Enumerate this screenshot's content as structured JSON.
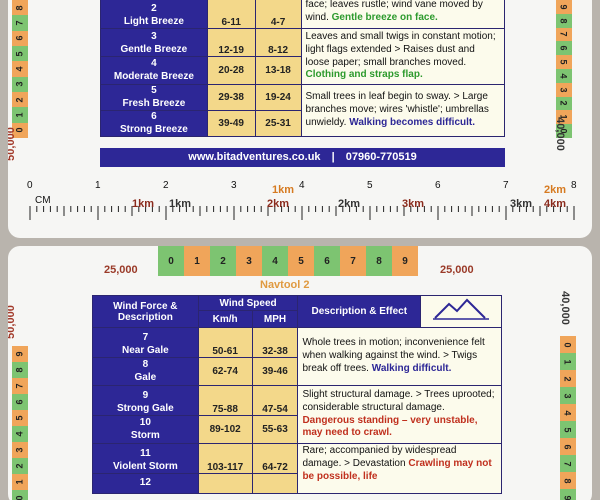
{
  "top_card": {
    "left_strip": [
      "8",
      "7",
      "6",
      "5",
      "4",
      "3",
      "2",
      "1",
      "0"
    ],
    "right_strip": [
      "9",
      "8",
      "7",
      "6",
      "5",
      "4",
      "3",
      "2",
      "1",
      "0"
    ],
    "left_label": "50,000",
    "right_label": "40,000",
    "rows": [
      {
        "force": "2",
        "name": "Light Breeze",
        "kmh": "6-11",
        "mph": "4-7",
        "desc": "face; leaves rustle; wind vane moved by wind.",
        "highlight": "Gentle breeze on face.",
        "highlight_color": "green"
      },
      {
        "force": "3",
        "name": "Gentle Breeze",
        "kmh": "12-19",
        "mph": "8-12",
        "desc": "Leaves and small twigs in constant motion; light flags extended > Raises dust and loose paper; small branches moved.",
        "highlight": "Clothing and straps flap.",
        "highlight_color": "green"
      },
      {
        "force": "4",
        "name": "Moderate Breeze",
        "kmh": "20-28",
        "mph": "13-18",
        "desc": "",
        "highlight": "",
        "highlight_color": "green"
      },
      {
        "force": "5",
        "name": "Fresh Breeze",
        "kmh": "29-38",
        "mph": "19-24",
        "desc": "Small trees in leaf begin to sway. > Large branches move; wires 'whistle'; umbrellas unwieldy.",
        "highlight": "Walking becomes difficult.",
        "highlight_color": "purple"
      },
      {
        "force": "6",
        "name": "Strong Breeze",
        "kmh": "39-49",
        "mph": "25-31",
        "desc": "",
        "highlight": "",
        "highlight_color": "purple"
      }
    ],
    "footer_url": "www.bitadventures.co.uk",
    "footer_sep": "|",
    "footer_phone": "07960-770519"
  },
  "ruler": {
    "cm_label": "CM",
    "cm_ticks": [
      "0",
      "1",
      "2",
      "3",
      "4",
      "5",
      "6",
      "7",
      "8"
    ],
    "km_labels": [
      {
        "text": "1km",
        "style": "red"
      },
      {
        "text": "1km",
        "style": "grey"
      },
      {
        "text": "1km",
        "style": "orange"
      },
      {
        "text": "2km",
        "style": "red"
      },
      {
        "text": "2km",
        "style": "grey"
      },
      {
        "text": "3km",
        "style": "red"
      },
      {
        "text": "3km",
        "style": "grey"
      },
      {
        "text": "2km",
        "style": "orange"
      },
      {
        "text": "4km",
        "style": "red"
      }
    ]
  },
  "scale_strip": {
    "cells": [
      "0",
      "1",
      "2",
      "3",
      "4",
      "5",
      "6",
      "7",
      "8",
      "9"
    ],
    "left_label": "25,000",
    "right_label": "25,000"
  },
  "bottom_card": {
    "title": "Navtool 2",
    "left_strip": [
      "9",
      "8",
      "7",
      "6",
      "5",
      "4",
      "3",
      "2",
      "1",
      "0"
    ],
    "right_strip": [
      "0",
      "1",
      "2",
      "3",
      "4",
      "5",
      "6",
      "7",
      "8",
      "9"
    ],
    "left_label": "50,000",
    "right_label": "40,000",
    "headers": {
      "force": "Wind Force & Description",
      "speed": "Wind Speed",
      "kmh": "Km/h",
      "mph": "MPH",
      "desc": "Description & Effect"
    },
    "rows": [
      {
        "force": "7",
        "name": "Near Gale",
        "kmh": "50-61",
        "mph": "32-38",
        "desc": "Whole trees in motion; inconvenience felt when walking against the wind. > Twigs break off trees.",
        "highlight": "Walking difficult.",
        "highlight_color": "purple"
      },
      {
        "force": "8",
        "name": "Gale",
        "kmh": "62-74",
        "mph": "39-46",
        "desc": "",
        "highlight": "",
        "highlight_color": "purple"
      },
      {
        "force": "9",
        "name": "Strong Gale",
        "kmh": "75-88",
        "mph": "47-54",
        "desc": "Slight structural damage. > Trees uprooted; considerable structural damage.",
        "highlight": "Dangerous standing – very unstable, may need to crawl.",
        "highlight_color": "red"
      },
      {
        "force": "10",
        "name": "Storm",
        "kmh": "89-102",
        "mph": "55-63",
        "desc": "",
        "highlight": "",
        "highlight_color": "red"
      },
      {
        "force": "11",
        "name": "Violent Storm",
        "kmh": "103-117",
        "mph": "64-72",
        "desc": "Rare; accompanied by widespread damage. > Devastation",
        "highlight": "Crawling may not be possible, life",
        "highlight_color": "red"
      },
      {
        "force": "12",
        "name": "",
        "kmh": "",
        "mph": "",
        "desc": "",
        "highlight": "",
        "highlight_color": "red"
      }
    ]
  },
  "colors": {
    "navy": "#2d2796",
    "speed_bg": "#f3d88a",
    "strip_green": "#7dc471",
    "strip_orange": "#f0a55a",
    "green_text": "#2d9a2d",
    "red_text": "#c0301e"
  }
}
